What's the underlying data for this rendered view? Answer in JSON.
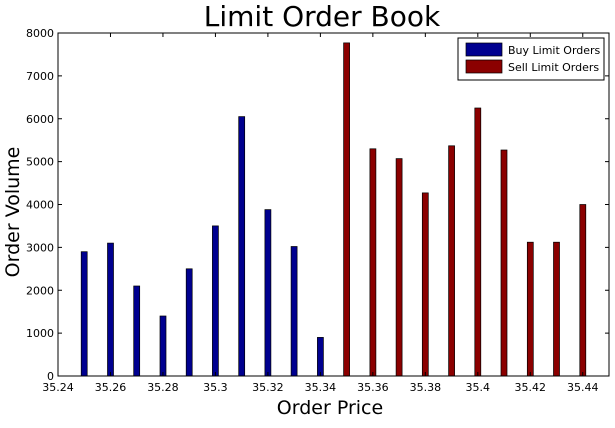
{
  "chart_data": {
    "type": "bar",
    "title": "Limit Order Book",
    "xlabel": "Order Price",
    "ylabel": "Order Volume",
    "xlim": [
      35.24,
      35.45
    ],
    "ylim": [
      0,
      8000
    ],
    "xticks": [
      35.24,
      35.26,
      35.28,
      35.3,
      35.32,
      35.34,
      35.36,
      35.38,
      35.4,
      35.42,
      35.44
    ],
    "xtick_labels": [
      "35.24",
      "35.26",
      "35.28",
      "35.3",
      "35.32",
      "35.34",
      "35.36",
      "35.38",
      "35.4",
      "35.42",
      "35.44"
    ],
    "yticks": [
      0,
      1000,
      2000,
      3000,
      4000,
      5000,
      6000,
      7000,
      8000
    ],
    "ytick_labels": [
      "0",
      "1000",
      "2000",
      "3000",
      "4000",
      "5000",
      "6000",
      "7000",
      "8000"
    ],
    "grid": false,
    "legend": "top-right",
    "series": [
      {
        "name": "Buy Limit Orders",
        "color": "#00008f",
        "x": [
          35.25,
          35.26,
          35.27,
          35.28,
          35.29,
          35.3,
          35.31,
          35.32,
          35.33,
          35.34
        ],
        "values": [
          2900,
          3100,
          2100,
          1400,
          2500,
          3500,
          6050,
          3880,
          3020,
          900
        ]
      },
      {
        "name": "Sell Limit Orders",
        "color": "#8b0000",
        "x": [
          35.35,
          35.36,
          35.37,
          35.38,
          35.39,
          35.4,
          35.41,
          35.42,
          35.43,
          35.44
        ],
        "values": [
          7770,
          5300,
          5070,
          4270,
          5370,
          6250,
          5270,
          3120,
          3120,
          4000
        ]
      }
    ]
  }
}
